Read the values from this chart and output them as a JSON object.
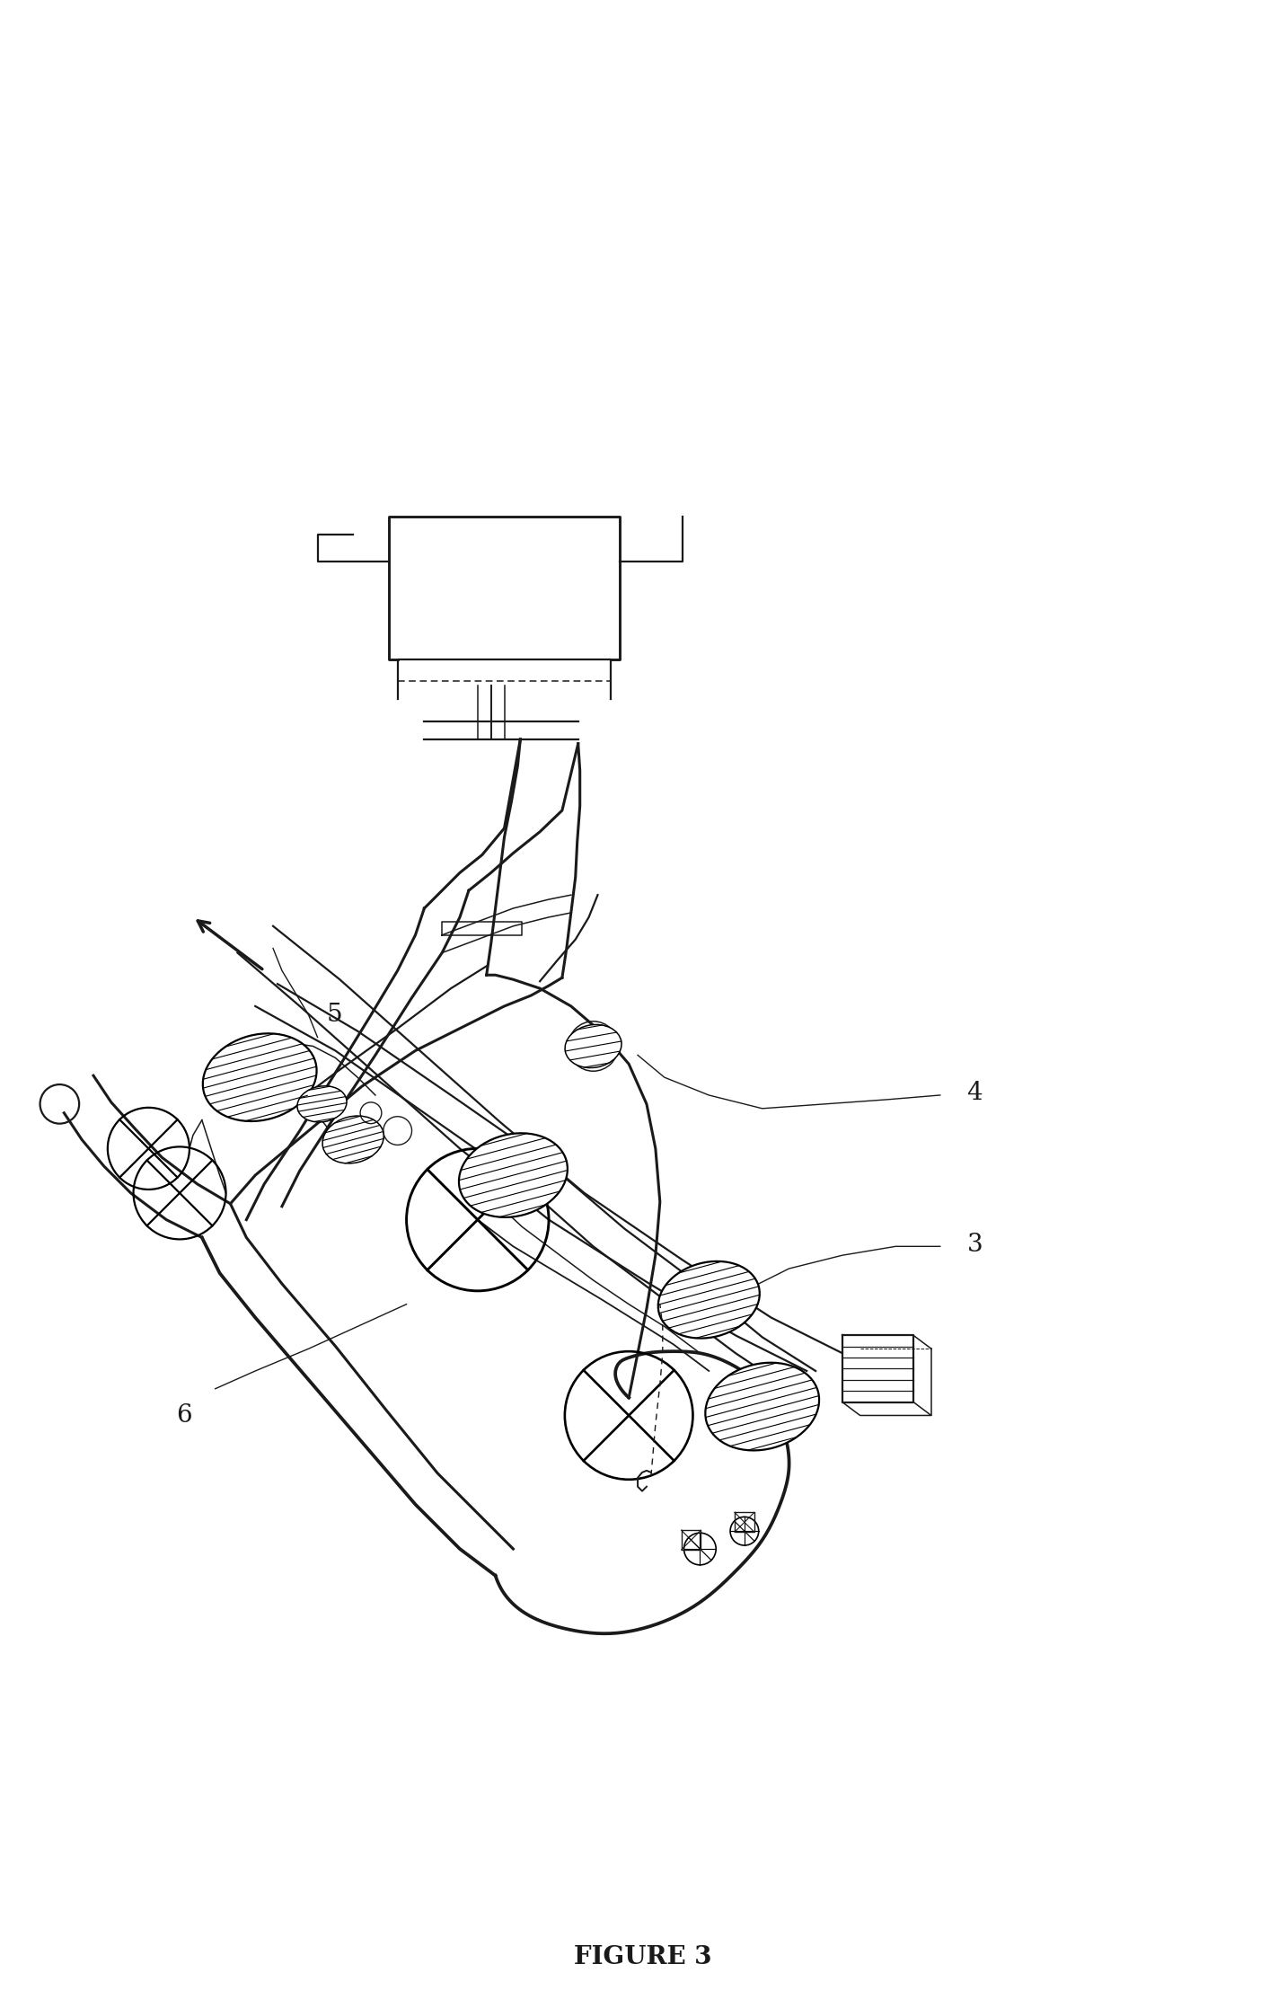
{
  "title": "FIGURE 3",
  "title_fontsize": 20,
  "title_fontweight": "bold",
  "background_color": "#ffffff",
  "line_color": "#1a1a1a",
  "label_fontsize": 18
}
